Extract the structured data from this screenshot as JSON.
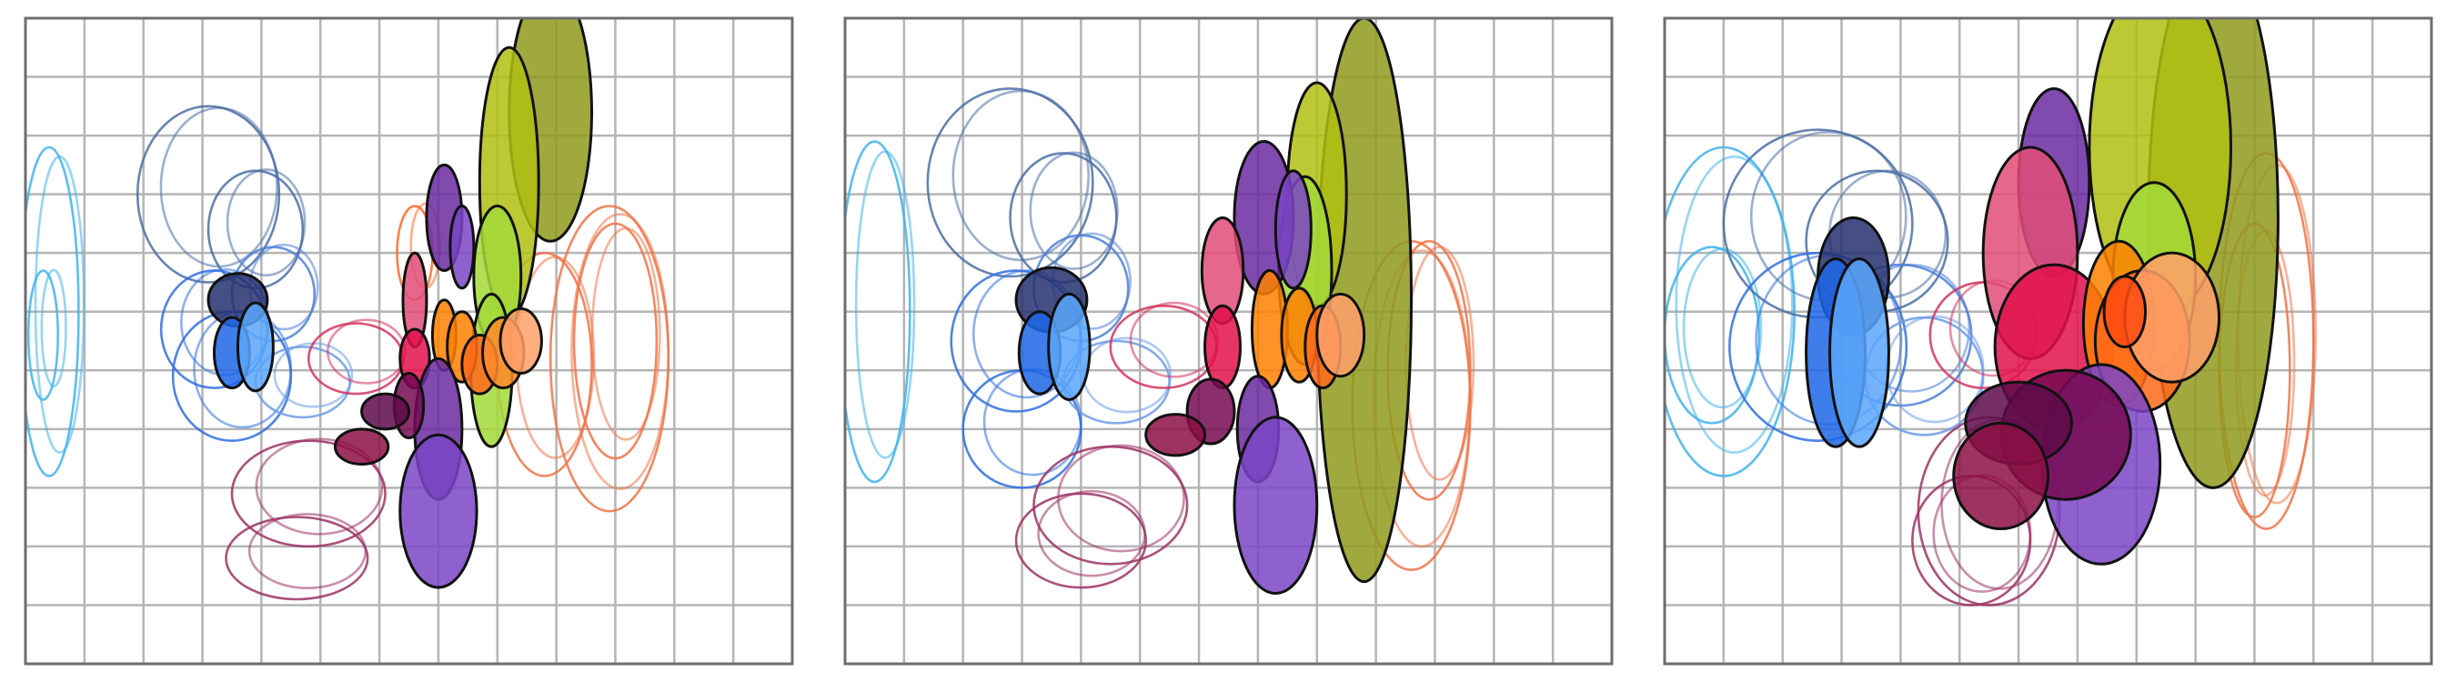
{
  "chart_data": [
    {
      "type": "scatter",
      "panel": 1,
      "title": "",
      "xlabel": "",
      "ylabel": "",
      "grid": true,
      "xlim": [
        0,
        13
      ],
      "ylim": [
        0,
        11
      ],
      "filled_ellipses": [
        {
          "x": 8.9,
          "y": 9.4,
          "rx": 0.7,
          "ry": 2.2,
          "color": "#8f9a1c"
        },
        {
          "x": 8.2,
          "y": 8.2,
          "rx": 0.5,
          "ry": 2.3,
          "color": "#b0bf12"
        },
        {
          "x": 8.0,
          "y": 6.6,
          "rx": 0.4,
          "ry": 1.2,
          "color": "#a3d938"
        },
        {
          "x": 7.9,
          "y": 5.0,
          "rx": 0.35,
          "ry": 1.3,
          "color": "#a3d938"
        },
        {
          "x": 7.1,
          "y": 7.6,
          "rx": 0.3,
          "ry": 0.9,
          "color": "#6a2aa1"
        },
        {
          "x": 7.4,
          "y": 7.1,
          "rx": 0.2,
          "ry": 0.7,
          "color": "#7a45c6"
        },
        {
          "x": 6.6,
          "y": 6.2,
          "rx": 0.2,
          "ry": 0.8,
          "color": "#e04c78"
        },
        {
          "x": 6.6,
          "y": 5.2,
          "rx": 0.25,
          "ry": 0.5,
          "color": "#e0104a"
        },
        {
          "x": 7.1,
          "y": 5.6,
          "rx": 0.2,
          "ry": 0.6,
          "color": "#ff8000"
        },
        {
          "x": 7.4,
          "y": 5.4,
          "rx": 0.25,
          "ry": 0.6,
          "color": "#ff8000"
        },
        {
          "x": 7.7,
          "y": 5.1,
          "rx": 0.3,
          "ry": 0.5,
          "color": "#ff6a1a"
        },
        {
          "x": 8.1,
          "y": 5.3,
          "rx": 0.35,
          "ry": 0.6,
          "color": "#ff8a2a"
        },
        {
          "x": 8.4,
          "y": 5.5,
          "rx": 0.35,
          "ry": 0.55,
          "color": "#ffa06a"
        },
        {
          "x": 7.0,
          "y": 4.0,
          "rx": 0.4,
          "ry": 1.2,
          "color": "#6a2aa1"
        },
        {
          "x": 7.0,
          "y": 2.6,
          "rx": 0.65,
          "ry": 1.3,
          "color": "#7a45c6"
        },
        {
          "x": 6.5,
          "y": 4.4,
          "rx": 0.25,
          "ry": 0.55,
          "color": "#770b52"
        },
        {
          "x": 6.1,
          "y": 4.3,
          "rx": 0.4,
          "ry": 0.3,
          "color": "#5e0a4a"
        },
        {
          "x": 5.7,
          "y": 3.7,
          "rx": 0.45,
          "ry": 0.3,
          "color": "#8c0f45"
        },
        {
          "x": 3.6,
          "y": 6.2,
          "rx": 0.5,
          "ry": 0.45,
          "color": "#25306f"
        },
        {
          "x": 3.5,
          "y": 5.3,
          "rx": 0.3,
          "ry": 0.6,
          "color": "#1d66e8"
        },
        {
          "x": 3.9,
          "y": 5.4,
          "rx": 0.3,
          "ry": 0.75,
          "color": "#5aa6fa"
        }
      ],
      "outline_ellipses": [
        {
          "x": 0.4,
          "y": 6.0,
          "rx": 0.5,
          "ry": 2.8,
          "color": "#3fb2ee"
        },
        {
          "x": 0.3,
          "y": 5.6,
          "rx": 0.25,
          "ry": 1.1,
          "color": "#3fb2ee"
        },
        {
          "x": 3.1,
          "y": 8.0,
          "rx": 1.2,
          "ry": 1.5,
          "color": "#4b6ea5"
        },
        {
          "x": 3.9,
          "y": 7.4,
          "rx": 0.8,
          "ry": 1.0,
          "color": "#4b6ea5"
        },
        {
          "x": 3.2,
          "y": 5.7,
          "rx": 0.9,
          "ry": 1.0,
          "color": "#2f6fe0"
        },
        {
          "x": 3.5,
          "y": 4.9,
          "rx": 1.0,
          "ry": 1.1,
          "color": "#2f6fe0"
        },
        {
          "x": 4.2,
          "y": 6.3,
          "rx": 0.7,
          "ry": 0.8,
          "color": "#4e80d8"
        },
        {
          "x": 4.7,
          "y": 4.8,
          "rx": 0.8,
          "ry": 0.6,
          "color": "#6c9be8"
        },
        {
          "x": 5.6,
          "y": 5.2,
          "rx": 0.8,
          "ry": 0.6,
          "color": "#d4325e"
        },
        {
          "x": 4.8,
          "y": 2.9,
          "rx": 1.3,
          "ry": 0.9,
          "color": "#9b3264"
        },
        {
          "x": 4.6,
          "y": 1.8,
          "rx": 1.2,
          "ry": 0.7,
          "color": "#9b3264"
        },
        {
          "x": 6.6,
          "y": 7.0,
          "rx": 0.3,
          "ry": 0.8,
          "color": "#ff6a2a"
        },
        {
          "x": 9.9,
          "y": 5.2,
          "rx": 1.0,
          "ry": 2.6,
          "color": "#f07346"
        },
        {
          "x": 10.0,
          "y": 5.5,
          "rx": 0.7,
          "ry": 2.0,
          "color": "#f07346"
        },
        {
          "x": 8.8,
          "y": 5.1,
          "rx": 0.8,
          "ry": 1.9,
          "color": "#f07346"
        }
      ]
    },
    {
      "type": "scatter",
      "panel": 2,
      "title": "",
      "xlabel": "",
      "ylabel": "",
      "grid": true,
      "xlim": [
        0,
        13
      ],
      "ylim": [
        0,
        11
      ],
      "filled_ellipses": [
        {
          "x": 8.8,
          "y": 6.2,
          "rx": 0.8,
          "ry": 4.8,
          "color": "#8f9a1c"
        },
        {
          "x": 8.0,
          "y": 8.0,
          "rx": 0.5,
          "ry": 1.9,
          "color": "#b0bf12"
        },
        {
          "x": 7.8,
          "y": 6.7,
          "rx": 0.45,
          "ry": 1.6,
          "color": "#a3d938"
        },
        {
          "x": 7.1,
          "y": 7.6,
          "rx": 0.5,
          "ry": 1.3,
          "color": "#6a2aa1"
        },
        {
          "x": 7.6,
          "y": 7.4,
          "rx": 0.3,
          "ry": 1.0,
          "color": "#7a45c6"
        },
        {
          "x": 6.4,
          "y": 6.7,
          "rx": 0.35,
          "ry": 0.9,
          "color": "#e04c78"
        },
        {
          "x": 6.4,
          "y": 5.4,
          "rx": 0.3,
          "ry": 0.7,
          "color": "#e0104a"
        },
        {
          "x": 7.2,
          "y": 5.7,
          "rx": 0.3,
          "ry": 1.0,
          "color": "#ff8000"
        },
        {
          "x": 7.7,
          "y": 5.6,
          "rx": 0.3,
          "ry": 0.8,
          "color": "#ff8000"
        },
        {
          "x": 8.1,
          "y": 5.4,
          "rx": 0.3,
          "ry": 0.7,
          "color": "#ff6a1a"
        },
        {
          "x": 8.4,
          "y": 5.6,
          "rx": 0.4,
          "ry": 0.7,
          "color": "#ffa06a"
        },
        {
          "x": 7.0,
          "y": 4.0,
          "rx": 0.35,
          "ry": 0.9,
          "color": "#6a2aa1"
        },
        {
          "x": 7.3,
          "y": 2.7,
          "rx": 0.7,
          "ry": 1.5,
          "color": "#7a45c6"
        },
        {
          "x": 6.2,
          "y": 4.3,
          "rx": 0.4,
          "ry": 0.55,
          "color": "#770b52"
        },
        {
          "x": 5.6,
          "y": 3.9,
          "rx": 0.5,
          "ry": 0.35,
          "color": "#8c0f45"
        },
        {
          "x": 3.5,
          "y": 6.2,
          "rx": 0.6,
          "ry": 0.55,
          "color": "#25306f"
        },
        {
          "x": 3.3,
          "y": 5.3,
          "rx": 0.35,
          "ry": 0.7,
          "color": "#1d66e8"
        },
        {
          "x": 3.8,
          "y": 5.4,
          "rx": 0.35,
          "ry": 0.9,
          "color": "#5aa6fa"
        }
      ],
      "outline_ellipses": [
        {
          "x": 0.5,
          "y": 6.0,
          "rx": 0.6,
          "ry": 2.9,
          "color": "#3fb2ee"
        },
        {
          "x": 2.8,
          "y": 8.2,
          "rx": 1.4,
          "ry": 1.6,
          "color": "#4b6ea5"
        },
        {
          "x": 3.7,
          "y": 7.6,
          "rx": 0.9,
          "ry": 1.1,
          "color": "#4b6ea5"
        },
        {
          "x": 2.9,
          "y": 5.5,
          "rx": 1.1,
          "ry": 1.2,
          "color": "#2f6fe0"
        },
        {
          "x": 3.0,
          "y": 4.0,
          "rx": 1.0,
          "ry": 1.0,
          "color": "#2f6fe0"
        },
        {
          "x": 4.0,
          "y": 6.4,
          "rx": 0.8,
          "ry": 0.9,
          "color": "#4e80d8"
        },
        {
          "x": 4.6,
          "y": 4.8,
          "rx": 0.9,
          "ry": 0.7,
          "color": "#6c9be8"
        },
        {
          "x": 5.4,
          "y": 5.4,
          "rx": 0.9,
          "ry": 0.7,
          "color": "#d4325e"
        },
        {
          "x": 4.5,
          "y": 2.7,
          "rx": 1.3,
          "ry": 1.0,
          "color": "#9b3264"
        },
        {
          "x": 4.0,
          "y": 2.1,
          "rx": 1.1,
          "ry": 0.8,
          "color": "#9b3264"
        },
        {
          "x": 9.6,
          "y": 4.4,
          "rx": 1.0,
          "ry": 2.8,
          "color": "#f07346"
        },
        {
          "x": 9.9,
          "y": 5.0,
          "rx": 0.7,
          "ry": 2.2,
          "color": "#f07346"
        }
      ]
    },
    {
      "type": "scatter",
      "panel": 3,
      "title": "",
      "xlabel": "",
      "ylabel": "",
      "grid": true,
      "xlim": [
        0,
        13
      ],
      "ylim": [
        0,
        11
      ],
      "filled_ellipses": [
        {
          "x": 9.3,
          "y": 7.6,
          "rx": 1.1,
          "ry": 4.6,
          "color": "#8f9a1c"
        },
        {
          "x": 8.4,
          "y": 8.8,
          "rx": 1.2,
          "ry": 2.9,
          "color": "#b0bf12"
        },
        {
          "x": 8.3,
          "y": 6.6,
          "rx": 0.7,
          "ry": 1.6,
          "color": "#a3d938"
        },
        {
          "x": 6.6,
          "y": 8.2,
          "rx": 0.6,
          "ry": 1.6,
          "color": "#6a2aa1"
        },
        {
          "x": 6.2,
          "y": 7.0,
          "rx": 0.8,
          "ry": 1.8,
          "color": "#e04c78"
        },
        {
          "x": 6.6,
          "y": 5.4,
          "rx": 1.0,
          "ry": 1.4,
          "color": "#e0104a"
        },
        {
          "x": 7.7,
          "y": 5.8,
          "rx": 0.6,
          "ry": 1.4,
          "color": "#ff8000"
        },
        {
          "x": 8.1,
          "y": 5.5,
          "rx": 0.8,
          "ry": 1.2,
          "color": "#ff6a1a"
        },
        {
          "x": 8.6,
          "y": 5.9,
          "rx": 0.8,
          "ry": 1.1,
          "color": "#ffa06a"
        },
        {
          "x": 7.8,
          "y": 6.0,
          "rx": 0.35,
          "ry": 0.6,
          "color": "#ff4a10"
        },
        {
          "x": 7.4,
          "y": 3.4,
          "rx": 1.0,
          "ry": 1.7,
          "color": "#7a45c6"
        },
        {
          "x": 6.8,
          "y": 3.9,
          "rx": 1.1,
          "ry": 1.1,
          "color": "#770b52"
        },
        {
          "x": 6.0,
          "y": 4.1,
          "rx": 0.9,
          "ry": 0.7,
          "color": "#5e0a4a"
        },
        {
          "x": 5.7,
          "y": 3.2,
          "rx": 0.8,
          "ry": 0.9,
          "color": "#8c0f45"
        },
        {
          "x": 3.2,
          "y": 6.6,
          "rx": 0.6,
          "ry": 1.0,
          "color": "#25306f"
        },
        {
          "x": 2.9,
          "y": 5.3,
          "rx": 0.5,
          "ry": 1.6,
          "color": "#1d66e8"
        },
        {
          "x": 3.3,
          "y": 5.3,
          "rx": 0.5,
          "ry": 1.6,
          "color": "#5aa6fa"
        }
      ],
      "outline_ellipses": [
        {
          "x": 1.0,
          "y": 6.0,
          "rx": 1.2,
          "ry": 2.8,
          "color": "#3fb2ee"
        },
        {
          "x": 0.8,
          "y": 5.6,
          "rx": 0.8,
          "ry": 1.5,
          "color": "#3fb2ee"
        },
        {
          "x": 2.6,
          "y": 7.5,
          "rx": 1.6,
          "ry": 1.6,
          "color": "#4b6ea5"
        },
        {
          "x": 3.6,
          "y": 7.2,
          "rx": 1.2,
          "ry": 1.2,
          "color": "#4b6ea5"
        },
        {
          "x": 2.6,
          "y": 5.4,
          "rx": 1.5,
          "ry": 1.6,
          "color": "#2f6fe0"
        },
        {
          "x": 4.0,
          "y": 5.6,
          "rx": 1.2,
          "ry": 1.2,
          "color": "#4e80d8"
        },
        {
          "x": 4.4,
          "y": 4.9,
          "rx": 1.0,
          "ry": 1.0,
          "color": "#6c9be8"
        },
        {
          "x": 5.4,
          "y": 5.6,
          "rx": 0.9,
          "ry": 0.9,
          "color": "#d4325e"
        },
        {
          "x": 5.5,
          "y": 2.6,
          "rx": 1.2,
          "ry": 1.6,
          "color": "#9b3264"
        },
        {
          "x": 5.2,
          "y": 2.1,
          "rx": 1.0,
          "ry": 1.1,
          "color": "#9b3264"
        },
        {
          "x": 10.2,
          "y": 5.5,
          "rx": 0.8,
          "ry": 3.2,
          "color": "#f07346"
        },
        {
          "x": 10.0,
          "y": 5.0,
          "rx": 0.6,
          "ry": 2.5,
          "color": "#f07346"
        }
      ]
    }
  ]
}
